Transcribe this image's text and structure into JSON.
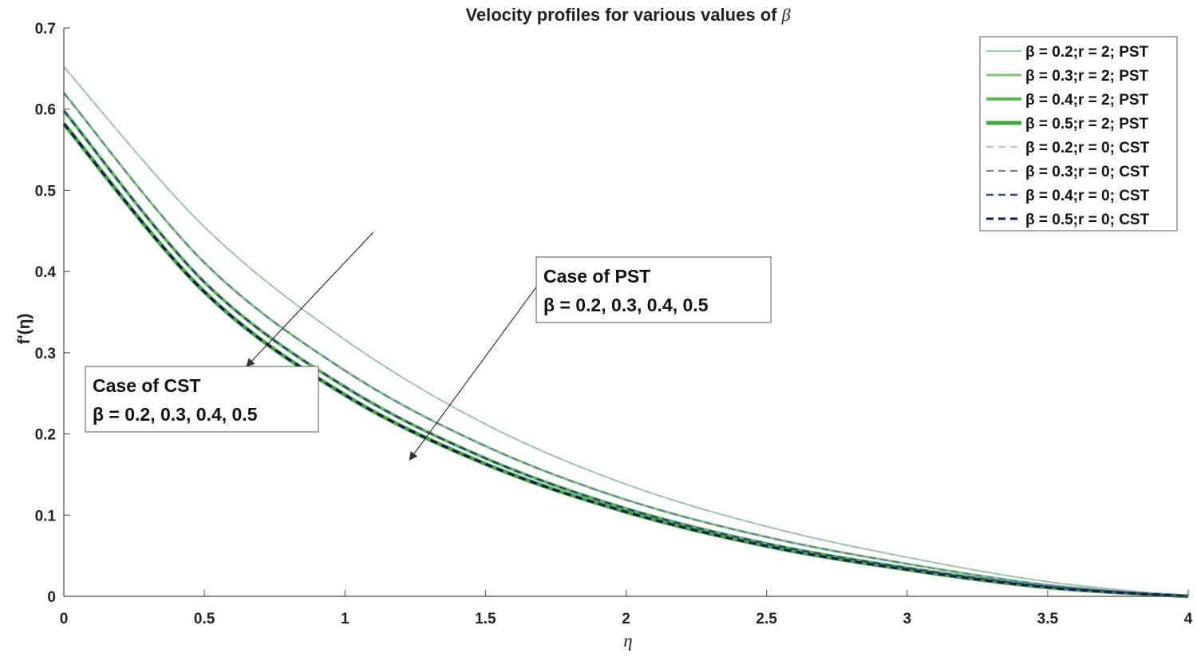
{
  "chart_data": {
    "type": "line",
    "title": "Velocity profiles for various values of",
    "title_symbol": "β",
    "xlabel": "η",
    "ylabel": "f'(η)",
    "xlim": [
      0,
      4
    ],
    "ylim": [
      0,
      0.7
    ],
    "xticks": [
      0,
      0.5,
      1,
      1.5,
      2,
      2.5,
      3,
      3.5,
      4
    ],
    "xtick_labels": [
      "0",
      "0.5",
      "1",
      "1.5",
      "2",
      "2.5",
      "3",
      "3.5",
      "4"
    ],
    "yticks": [
      0,
      0.1,
      0.2,
      0.3,
      0.4,
      0.5,
      0.6,
      0.7
    ],
    "ytick_labels": [
      "0",
      "0.1",
      "0.2",
      "0.3",
      "0.4",
      "0.5",
      "0.6",
      "0.7"
    ],
    "grid": false,
    "legend_position": "top-right",
    "x": [
      0,
      0.5,
      1,
      1.5,
      2,
      2.5,
      3,
      3.5,
      4
    ],
    "series": [
      {
        "name": "β = 0.2;r = 2; PST",
        "style": "solid",
        "color": "#9fd49f",
        "width": 2,
        "values": [
          0.652,
          0.455,
          0.316,
          0.212,
          0.138,
          0.086,
          0.048,
          0.018,
          0
        ]
      },
      {
        "name": "β = 0.3;r = 2; PST",
        "style": "solid",
        "color": "#7cc87c",
        "width": 3,
        "values": [
          0.62,
          0.411,
          0.278,
          0.185,
          0.119,
          0.073,
          0.04,
          0.014,
          0
        ]
      },
      {
        "name": "β = 0.4;r = 2; PST",
        "style": "solid",
        "color": "#5cb85c",
        "width": 4,
        "values": [
          0.598,
          0.387,
          0.258,
          0.17,
          0.108,
          0.065,
          0.035,
          0.012,
          0
        ]
      },
      {
        "name": "β = 0.5;r = 2; PST",
        "style": "solid",
        "color": "#46a546",
        "width": 5,
        "values": [
          0.582,
          0.375,
          0.248,
          0.163,
          0.104,
          0.062,
          0.033,
          0.011,
          0
        ]
      },
      {
        "name": "β = 0.2;r = 0; CST",
        "style": "dashed",
        "color": "#a6aec9",
        "width": 1.5,
        "values": [
          0.652,
          0.455,
          0.316,
          0.212,
          0.138,
          0.086,
          0.048,
          0.018,
          0
        ]
      },
      {
        "name": "β = 0.3;r = 0; CST",
        "style": "dashed",
        "color": "#6b78a3",
        "width": 2,
        "values": [
          0.62,
          0.411,
          0.278,
          0.185,
          0.119,
          0.073,
          0.04,
          0.014,
          0
        ]
      },
      {
        "name": "β = 0.4;r = 0; CST",
        "style": "dashed",
        "color": "#34447d",
        "width": 2.5,
        "values": [
          0.598,
          0.387,
          0.258,
          0.17,
          0.108,
          0.065,
          0.035,
          0.012,
          0
        ]
      },
      {
        "name": "β = 0.5;r = 0; CST",
        "style": "dashed",
        "color": "#131b4f",
        "width": 3,
        "values": [
          0.582,
          0.375,
          0.248,
          0.163,
          0.104,
          0.062,
          0.033,
          0.011,
          0
        ]
      }
    ],
    "annotations": [
      {
        "name": "pst",
        "lines": [
          "Case of PST",
          "β = 0.2, 0.3, 0.4, 0.5"
        ],
        "arrow_from": [
          1.7,
          0.39
        ],
        "arrow_to": [
          1.23,
          0.168
        ]
      },
      {
        "name": "cst",
        "lines": [
          "Case of CST",
          "β = 0.2, 0.3, 0.4, 0.5"
        ],
        "arrow_from": [
          1.1,
          0.448
        ],
        "arrow_to": [
          0.65,
          0.283
        ]
      }
    ]
  }
}
